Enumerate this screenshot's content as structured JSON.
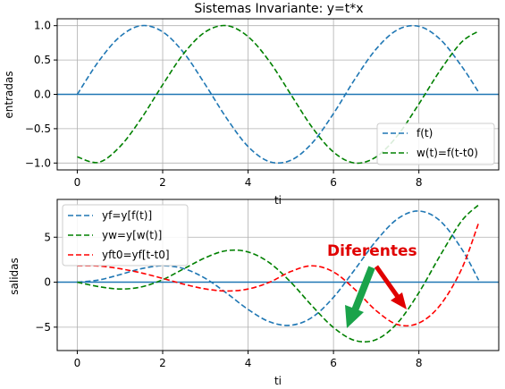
{
  "chart_data": [
    {
      "type": "line",
      "title": "Sistemas Invariante: y=t*x",
      "xlabel": "ti",
      "ylabel": "entradas",
      "xlim": [
        -0.47,
        9.87
      ],
      "ylim": [
        -1.1,
        1.1
      ],
      "xticks": [
        0,
        2,
        4,
        6,
        8
      ],
      "xtick_labels": [
        "0",
        "2",
        "4",
        "6",
        "8"
      ],
      "yticks": [
        1.0,
        0.5,
        0.0,
        -0.5,
        -1.0
      ],
      "ytick_labels": [
        "1.0",
        "0.5",
        "0.0",
        "−0.5",
        "−1.0"
      ],
      "grid": true,
      "legend_position": "bottom-right",
      "x": [
        0,
        0.5,
        1,
        1.5,
        2,
        2.5,
        3,
        3.5,
        4,
        4.5,
        5,
        5.5,
        6,
        6.5,
        7,
        7.5,
        8,
        8.5,
        9,
        9.4
      ],
      "series": [
        {
          "name": "f(t)",
          "color": "#1f77b4",
          "values": [
            0.0,
            0.48,
            0.84,
            1.0,
            0.91,
            0.6,
            0.14,
            -0.35,
            -0.76,
            -0.98,
            -0.96,
            -0.71,
            -0.28,
            0.22,
            0.66,
            0.94,
            0.99,
            0.8,
            0.41,
            0.03
          ]
        },
        {
          "name": "w(t)=f(t-t0)",
          "color": "#008000",
          "values": [
            -0.91,
            -0.99,
            -0.76,
            -0.35,
            0.14,
            0.6,
            0.91,
            1.0,
            0.84,
            0.48,
            0.0,
            -0.48,
            -0.84,
            -1.0,
            -0.91,
            -0.6,
            -0.14,
            0.35,
            0.76,
            0.92
          ]
        }
      ],
      "hline": {
        "y": 0,
        "color": "#1f77b4"
      }
    },
    {
      "type": "line",
      "title": "",
      "xlabel": "ti",
      "ylabel": "salidas",
      "xlim": [
        -0.47,
        9.87
      ],
      "ylim": [
        -7.6,
        9.2
      ],
      "xticks": [
        0,
        2,
        4,
        6,
        8
      ],
      "xtick_labels": [
        "0",
        "2",
        "4",
        "6",
        "8"
      ],
      "yticks": [
        5,
        0,
        -5
      ],
      "ytick_labels": [
        "5",
        "0",
        "−5"
      ],
      "grid": true,
      "legend_position": "top-left",
      "x": [
        0,
        0.5,
        1,
        1.5,
        2,
        2.5,
        3,
        3.5,
        4,
        4.5,
        5,
        5.5,
        6,
        6.5,
        7,
        7.5,
        8,
        8.5,
        9,
        9.4
      ],
      "series": [
        {
          "name": "yf=y[f(t)]",
          "color": "#1f77b4",
          "values": [
            0.0,
            0.24,
            0.84,
            1.5,
            1.82,
            1.5,
            0.42,
            -1.23,
            -3.03,
            -4.4,
            -4.79,
            -3.91,
            -1.68,
            1.41,
            4.6,
            7.04,
            7.91,
            6.8,
            3.71,
            0.23
          ]
        },
        {
          "name": "yw=y[w(t)]",
          "color": "#008000",
          "values": [
            0.0,
            -0.49,
            -0.76,
            -0.53,
            0.28,
            1.5,
            2.72,
            3.51,
            3.36,
            2.16,
            0.0,
            -2.64,
            -5.04,
            -6.48,
            -6.38,
            -4.53,
            -1.16,
            2.98,
            6.8,
            8.6
          ]
        },
        {
          "name": "yft0=yf[t-t0]",
          "color": "#ff0000",
          "values": [
            1.82,
            1.8,
            1.5,
            1.03,
            0.42,
            -0.23,
            -0.75,
            -0.98,
            -0.76,
            -0.01,
            1.18,
            1.82,
            1.14,
            -0.8,
            -3.17,
            -4.71,
            -4.54,
            -2.54,
            1.46,
            6.6
          ]
        }
      ],
      "hline": {
        "y": 0,
        "color": "#1f77b4"
      },
      "annotations": [
        {
          "text": "Diferentes",
          "color": "#e00000"
        }
      ]
    }
  ]
}
